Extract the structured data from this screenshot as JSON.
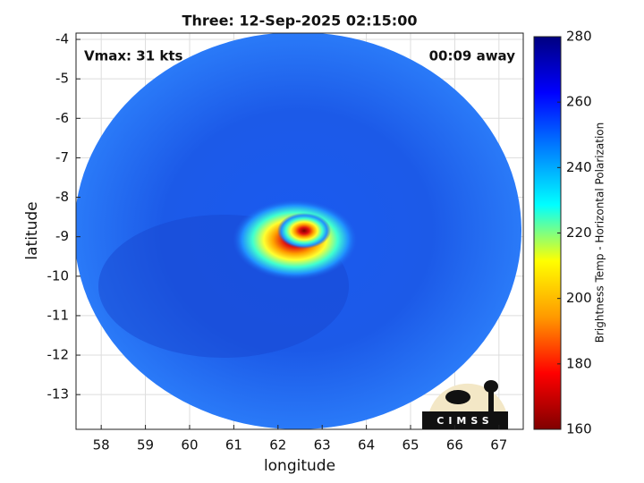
{
  "chart_data": {
    "type": "heatmap",
    "title": "Three: 12-Sep-2025 02:15:00",
    "annotations": [
      "Vmax: 31 kts",
      "00:09 away"
    ],
    "xlabel": "longitude",
    "ylabel": "latitude",
    "xlim": [
      57.43,
      67.55
    ],
    "ylim": [
      -13.88,
      -3.84
    ],
    "xticks": [
      58,
      59,
      60,
      61,
      62,
      63,
      64,
      65,
      66,
      67
    ],
    "yticks": [
      -13,
      -12,
      -11,
      -10,
      -9,
      -8,
      -7,
      -6,
      -5,
      -4
    ],
    "grid": true,
    "colorbar": {
      "label": "Brightness Temp - Horizontal Polarization",
      "lim": [
        160,
        280
      ],
      "ticks": [
        160,
        180,
        200,
        220,
        240,
        260,
        280
      ],
      "colormap": [
        "#800000",
        "#ff0000",
        "#ff9900",
        "#ffff00",
        "#00ffff",
        "#0080ff",
        "#0000ff",
        "#000080"
      ]
    }
  },
  "logo": "CIMSS"
}
